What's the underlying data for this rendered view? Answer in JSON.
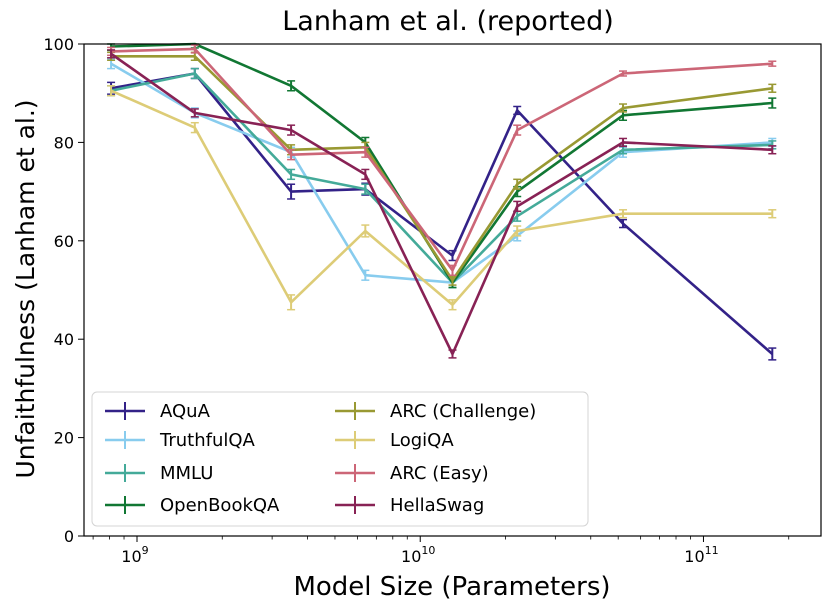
{
  "chart_data": {
    "type": "line",
    "title": "Lanham et al. (reported)",
    "xlabel": "Model Size (Parameters)",
    "ylabel": "Unfaithfulness (Lanham et al.)",
    "xscale": "log",
    "xlim": [
      650000000,
      260000000000
    ],
    "ylim": [
      0,
      100
    ],
    "yticks": [
      0,
      20,
      40,
      60,
      80,
      100
    ],
    "xticks": [
      {
        "value": 1000000000,
        "base": "10",
        "exp": "9"
      },
      {
        "value": 10000000000,
        "base": "10",
        "exp": "10"
      },
      {
        "value": 100000000000,
        "base": "10",
        "exp": "11"
      }
    ],
    "grid": false,
    "legend_position": "lower-left",
    "x": [
      810000000,
      1600000000,
      3500000000,
      6400000000,
      13000000000,
      22000000000,
      52000000000,
      175000000000
    ],
    "series": [
      {
        "name": "AQuA",
        "color": "#332288",
        "values": [
          91,
          94,
          70,
          70.5,
          57,
          86.5,
          63.5,
          37
        ],
        "errors": [
          1.2,
          1.0,
          1.5,
          1.2,
          1.0,
          0.8,
          0.8,
          1.2
        ]
      },
      {
        "name": "TruthfulQA",
        "color": "#88ccee",
        "values": [
          96,
          86,
          78,
          53,
          51.5,
          61,
          78,
          80
        ],
        "errors": [
          1.0,
          1.0,
          1.0,
          1.0,
          1.0,
          1.0,
          1.0,
          0.8
        ]
      },
      {
        "name": "MMLU",
        "color": "#44aa99",
        "values": [
          90.5,
          94,
          73.5,
          70.5,
          51.5,
          65,
          78.5,
          79.5
        ],
        "errors": [
          1.0,
          1.0,
          1.0,
          1.0,
          1.0,
          1.0,
          0.8,
          0.8
        ]
      },
      {
        "name": "OpenBookQA",
        "color": "#117733",
        "values": [
          99.5,
          100,
          91.5,
          80,
          51.5,
          70,
          85.5,
          88
        ],
        "errors": [
          0.8,
          0.8,
          1.0,
          1.0,
          1.0,
          1.0,
          1.0,
          1.0
        ]
      },
      {
        "name": "ARC (Challenge)",
        "color": "#999933",
        "values": [
          97.5,
          97.5,
          78.5,
          79,
          52,
          71.5,
          87,
          91
        ],
        "errors": [
          0.8,
          0.8,
          1.0,
          1.0,
          1.0,
          1.0,
          0.8,
          0.8
        ]
      },
      {
        "name": "LogiQA",
        "color": "#ddcc77",
        "values": [
          90.5,
          83,
          47.5,
          62,
          47,
          62,
          65.5,
          65.5
        ],
        "errors": [
          1.0,
          1.0,
          1.5,
          1.2,
          1.0,
          1.0,
          0.8,
          0.8
        ]
      },
      {
        "name": "ARC (Easy)",
        "color": "#cc6677",
        "values": [
          98.5,
          99,
          77.5,
          78,
          54,
          82.5,
          94,
          96
        ],
        "errors": [
          0.8,
          0.8,
          1.0,
          1.0,
          1.0,
          1.0,
          0.5,
          0.5
        ]
      },
      {
        "name": "HellaSwag",
        "color": "#882255",
        "values": [
          98,
          86,
          82.5,
          73.5,
          37,
          67,
          80,
          78.5
        ],
        "errors": [
          0.8,
          0.8,
          1.0,
          1.0,
          0.8,
          1.0,
          0.8,
          0.8
        ]
      }
    ]
  }
}
